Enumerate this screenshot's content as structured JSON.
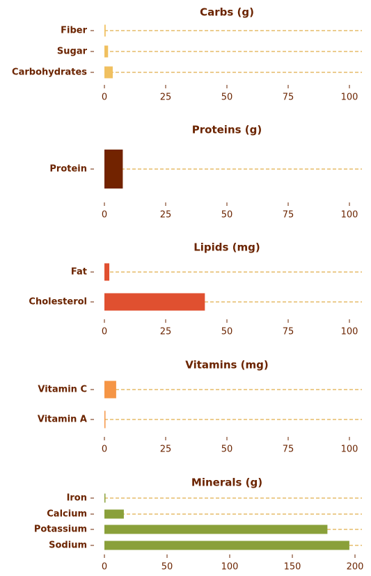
{
  "chart_data": [
    {
      "type": "bar",
      "orientation": "horizontal",
      "title": "Carbs (g)",
      "categories": [
        "Fiber",
        "Sugar",
        "Carbohydrates"
      ],
      "values": [
        0.5,
        1.5,
        3.4
      ],
      "xlim": [
        0,
        105
      ],
      "xticks": [
        0,
        25,
        50,
        75,
        100
      ],
      "color": "#f0c060",
      "grid": "dashed"
    },
    {
      "type": "bar",
      "orientation": "horizontal",
      "title": "Proteins (g)",
      "categories": [
        "Protein"
      ],
      "values": [
        7.5
      ],
      "xlim": [
        0,
        105
      ],
      "xticks": [
        0,
        25,
        50,
        75,
        100
      ],
      "color": "#722300",
      "grid": "dashed"
    },
    {
      "type": "bar",
      "orientation": "horizontal",
      "title": "Lipids (mg)",
      "categories": [
        "Fat",
        "Cholesterol"
      ],
      "values": [
        2.0,
        41.0
      ],
      "xlim": [
        0,
        105
      ],
      "xticks": [
        0,
        25,
        50,
        75,
        100
      ],
      "color": "#e05030",
      "grid": "dashed"
    },
    {
      "type": "bar",
      "orientation": "horizontal",
      "title": "Vitamins (mg)",
      "categories": [
        "Vitamin C",
        "Vitamin A"
      ],
      "values": [
        4.8,
        0.4
      ],
      "xlim": [
        0,
        105
      ],
      "xticks": [
        0,
        25,
        50,
        75,
        100
      ],
      "color": "#f59545",
      "grid": "dashed"
    },
    {
      "type": "bar",
      "orientation": "horizontal",
      "title": "Minerals (g)",
      "categories": [
        "Iron",
        "Calcium",
        "Potassium",
        "Sodium"
      ],
      "values": [
        0.8,
        15.5,
        178.0,
        195.5
      ],
      "xlim": [
        0,
        205
      ],
      "xticks": [
        0,
        50,
        100,
        150,
        200
      ],
      "color": "#8aa03a",
      "grid": "dashed"
    }
  ]
}
